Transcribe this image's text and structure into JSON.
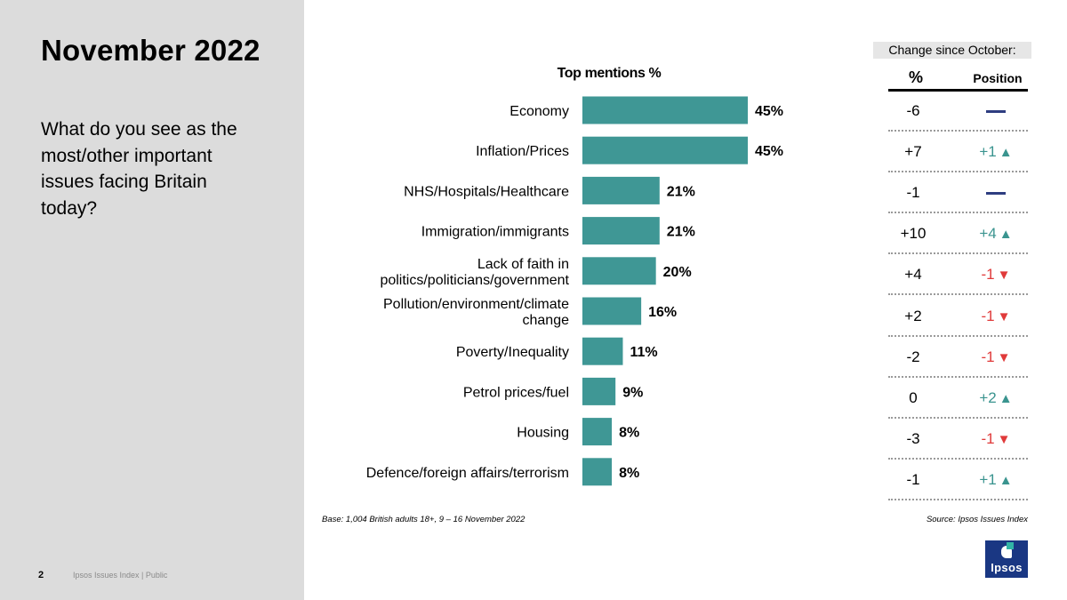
{
  "slide": {
    "title": "November 2022",
    "question": "What do you see as the most/other important issues facing Britain today?",
    "page_number": "2",
    "footer": "Ipsos Issues Index | Public",
    "base_note": "Base: 1,004 British adults 18+, 9 – 16 November 2022",
    "source_note": "Source: Ipsos Issues Index",
    "logo_text": "Ipsos"
  },
  "change_table": {
    "header": "Change since October:",
    "col_pct": "%",
    "col_pos": "Position",
    "rows": [
      {
        "pct": "-6",
        "pos": "",
        "dir": "same"
      },
      {
        "pct": "+7",
        "pos": "+1",
        "dir": "up"
      },
      {
        "pct": "-1",
        "pos": "",
        "dir": "same"
      },
      {
        "pct": "+10",
        "pos": "+4",
        "dir": "up"
      },
      {
        "pct": "+4",
        "pos": "-1",
        "dir": "down"
      },
      {
        "pct": "+2",
        "pos": "-1",
        "dir": "down"
      },
      {
        "pct": "-2",
        "pos": "-1",
        "dir": "down"
      },
      {
        "pct": "0",
        "pos": "+2",
        "dir": "up"
      },
      {
        "pct": "-3",
        "pos": "-1",
        "dir": "down"
      },
      {
        "pct": "-1",
        "pos": "+1",
        "dir": "up"
      }
    ]
  },
  "colors": {
    "bar": "#3f9795",
    "up": "#3a948f",
    "down": "#e03a3a",
    "same": "#2e3d80",
    "sidebar": "#dcdcdc"
  },
  "chart_data": {
    "type": "bar",
    "orientation": "horizontal",
    "title": "Top mentions %",
    "categories": [
      [
        "Economy"
      ],
      [
        "Inflation/Prices"
      ],
      [
        "NHS/Hospitals/Healthcare"
      ],
      [
        "Immigration/immigrants"
      ],
      [
        "Lack of faith in",
        "politics/politicians/government"
      ],
      [
        "Pollution/environment/climate",
        "change"
      ],
      [
        "Poverty/Inequality"
      ],
      [
        "Petrol prices/fuel"
      ],
      [
        "Housing"
      ],
      [
        "Defence/foreign affairs/terrorism"
      ]
    ],
    "values": [
      45,
      45,
      21,
      21,
      20,
      16,
      11,
      9,
      8,
      8
    ],
    "value_suffix": "%",
    "xlim": [
      0,
      50
    ],
    "grid": false,
    "legend": "none"
  }
}
